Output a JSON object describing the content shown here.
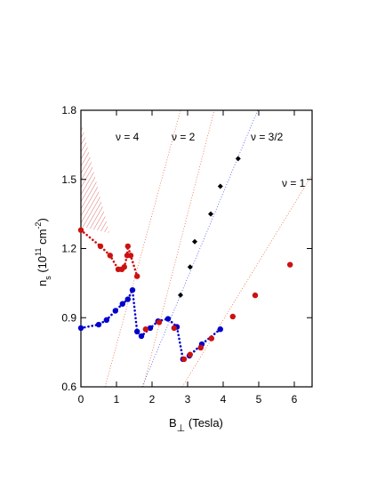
{
  "chart_data": {
    "type": "scatter",
    "x_label": [
      "B",
      "⊥",
      " (Tesla)"
    ],
    "y_label": [
      "n",
      "s",
      " (10",
      "11",
      " cm",
      "-2",
      ")"
    ],
    "xlim": [
      0,
      6.5
    ],
    "ylim": [
      0.6,
      1.8
    ],
    "xticks": [
      0,
      1,
      2,
      3,
      4,
      5,
      6
    ],
    "yticks": [
      0.6,
      0.9,
      1.2,
      1.5,
      1.8
    ],
    "annotations": [
      "ν = 4",
      "ν = 2",
      "ν = 3/2",
      "ν = 1"
    ],
    "guides": [
      {
        "color": "#e8704a",
        "x": [
          0.68,
          2.8
        ],
        "values": [
          0.6,
          1.8
        ]
      },
      {
        "color": "#e8704a",
        "x": [
          1.75,
          3.75
        ],
        "values": [
          0.6,
          1.8
        ]
      },
      {
        "color": "#4a5ae8",
        "x": [
          1.72,
          4.97
        ],
        "values": [
          0.6,
          1.8
        ]
      },
      {
        "color": "#e8704a",
        "x": [
          2.85,
          6.5
        ],
        "values": [
          0.6,
          1.52
        ]
      }
    ],
    "series": [
      {
        "color": "#cc1111",
        "marker": "circle",
        "line": true,
        "x": [
          0,
          0.55,
          0.82,
          1.05,
          1.15,
          1.22,
          1.3,
          1.32,
          1.4,
          1.58
        ],
        "values": [
          1.28,
          1.21,
          1.17,
          1.11,
          1.11,
          1.12,
          1.17,
          1.21,
          1.17,
          1.08
        ]
      },
      {
        "color": "#0000cc",
        "marker": "circle",
        "line": true,
        "x": [
          0,
          0.5,
          0.72,
          0.97,
          1.17,
          1.32,
          1.45,
          1.58,
          1.7,
          1.95,
          2.17,
          2.45,
          2.7,
          2.87,
          3.05,
          3.4,
          3.92
        ],
        "values": [
          0.855,
          0.87,
          0.89,
          0.93,
          0.96,
          0.98,
          1.02,
          0.84,
          0.82,
          0.855,
          0.885,
          0.895,
          0.86,
          0.72,
          0.735,
          0.785,
          0.85
        ]
      },
      {
        "color": "#cc1111",
        "marker": "circle",
        "line": false,
        "x": [
          1.82,
          2.2,
          2.62,
          2.9,
          3.07,
          3.37,
          3.67,
          4.27,
          4.9,
          5.88
        ],
        "values": [
          0.85,
          0.88,
          0.855,
          0.72,
          0.74,
          0.77,
          0.81,
          0.905,
          0.997,
          1.13
        ]
      },
      {
        "color": "#000000",
        "marker": "diamond",
        "line": false,
        "x": [
          2.8,
          3.07,
          3.2,
          3.65,
          3.92,
          4.42
        ],
        "values": [
          0.998,
          1.12,
          1.23,
          1.35,
          1.47,
          1.59
        ]
      }
    ]
  }
}
